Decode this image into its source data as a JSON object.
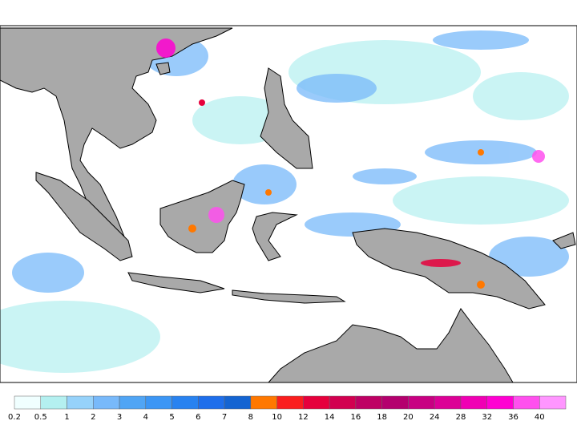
{
  "legend": {
    "ticks": [
      0.2,
      0.5,
      1,
      2,
      3,
      4,
      5,
      6,
      7,
      8,
      10,
      12,
      14,
      16,
      18,
      20,
      24,
      28,
      32,
      36,
      40
    ],
    "colors": [
      "#f0ffff",
      "#b4f0f0",
      "#96d2fa",
      "#78b9fa",
      "#50a5f5",
      "#3c96f5",
      "#2882f0",
      "#1e6eeb",
      "#1464d2",
      "#ff7800",
      "#fa1e1e",
      "#e6003c",
      "#d20050",
      "#be0064",
      "#b4006e",
      "#c80082",
      "#dc0096",
      "#f000b4",
      "#ff00d2",
      "#ff50ee",
      "#ff96ff"
    ]
  }
}
